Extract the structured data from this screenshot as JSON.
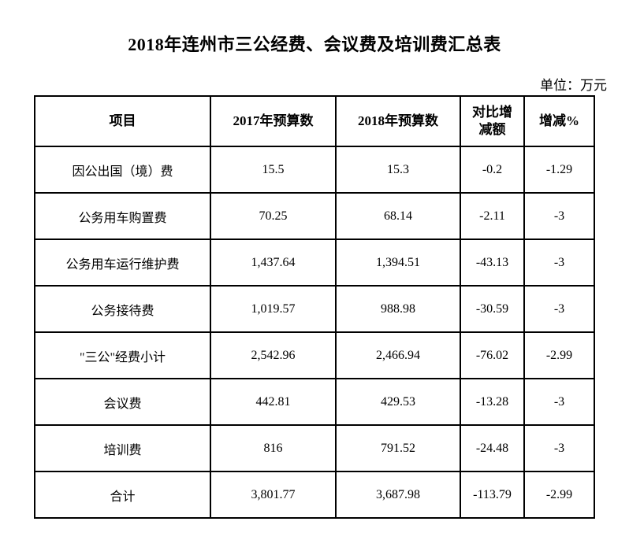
{
  "page": {
    "title": "2018年连州市三公经费、会议费及培训费汇总表",
    "unit_label": "单位：万元"
  },
  "colors": {
    "text": "#000000",
    "border": "#000000",
    "background": "#ffffff"
  },
  "table": {
    "columns": [
      "项目",
      "2017年预算数",
      "2018年预算数",
      "对比增减额",
      "增减%"
    ],
    "rows": [
      {
        "item": "因公出国（境）费",
        "y2017": "15.5",
        "y2018": "15.3",
        "diff": "-0.2",
        "pct": "-1.29"
      },
      {
        "item": "公务用车购置费",
        "y2017": "70.25",
        "y2018": "68.14",
        "diff": "-2.11",
        "pct": "-3"
      },
      {
        "item": "公务用车运行维护费",
        "y2017": "1,437.64",
        "y2018": "1,394.51",
        "diff": "-43.13",
        "pct": "-3"
      },
      {
        "item": "公务接待费",
        "y2017": "1,019.57",
        "y2018": "988.98",
        "diff": "-30.59",
        "pct": "-3"
      },
      {
        "item": "\"三公\"经费小计",
        "y2017": "2,542.96",
        "y2018": "2,466.94",
        "diff": "-76.02",
        "pct": "-2.99"
      },
      {
        "item": "会议费",
        "y2017": "442.81",
        "y2018": "429.53",
        "diff": "-13.28",
        "pct": "-3"
      },
      {
        "item": "培训费",
        "y2017": "816",
        "y2018": "791.52",
        "diff": "-24.48",
        "pct": "-3"
      },
      {
        "item": "合计",
        "y2017": "3,801.77",
        "y2018": "3,687.98",
        "diff": "-113.79",
        "pct": "-2.99"
      }
    ]
  }
}
